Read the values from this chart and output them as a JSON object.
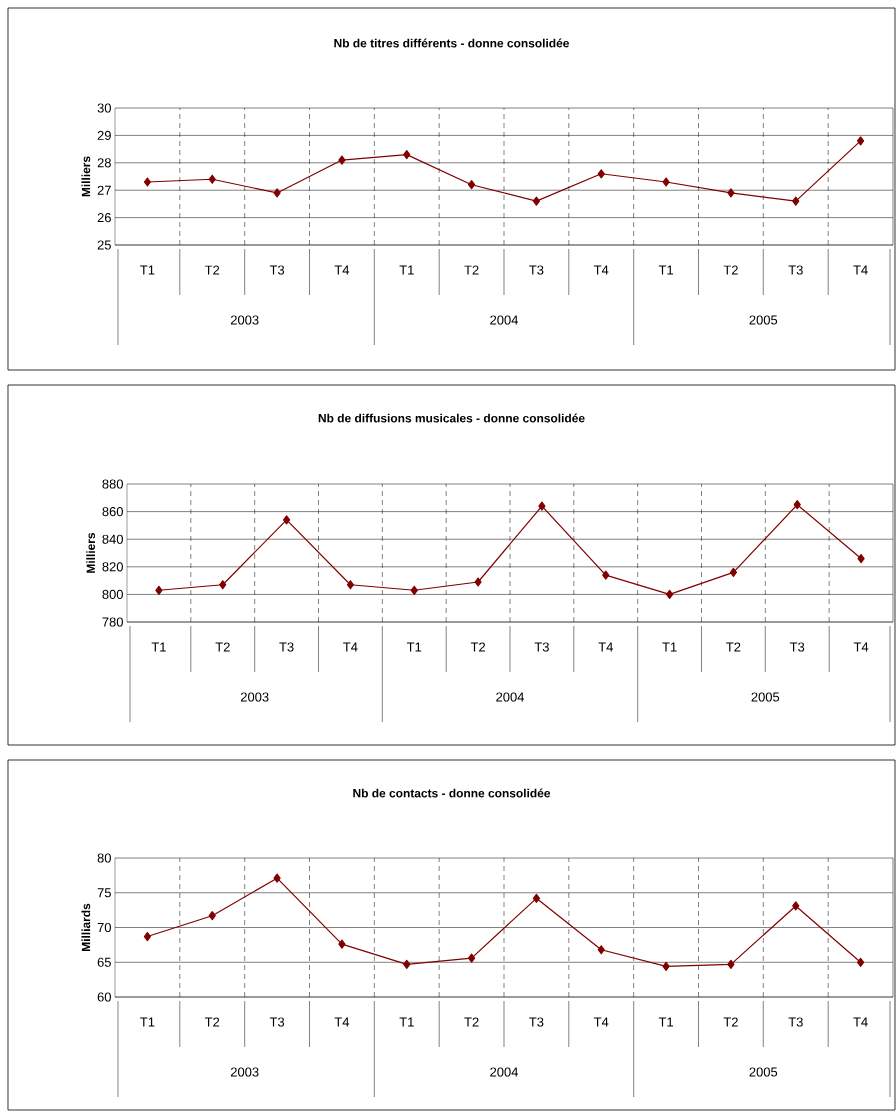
{
  "chart_data": [
    {
      "type": "line",
      "title": "Nb de titres différents - donne consolidée",
      "ylabel": "Milliers",
      "categories": [
        "T1",
        "T2",
        "T3",
        "T4",
        "T1",
        "T2",
        "T3",
        "T4",
        "T1",
        "T2",
        "T3",
        "T4"
      ],
      "annotations": [
        "2003",
        "2004",
        "2005"
      ],
      "values": [
        27.3,
        27.4,
        26.9,
        28.1,
        28.3,
        27.2,
        26.6,
        27.6,
        27.3,
        26.9,
        26.6,
        28.8
      ],
      "color": "#800000",
      "ylim": [
        25,
        30
      ],
      "yticks": [
        25,
        26,
        27,
        28,
        29,
        30
      ],
      "grid": true,
      "marker": "diamond"
    },
    {
      "type": "line",
      "title": "Nb de diffusions musicales - donne consolidée",
      "ylabel": "Milliers",
      "categories": [
        "T1",
        "T2",
        "T3",
        "T4",
        "T1",
        "T2",
        "T3",
        "T4",
        "T1",
        "T2",
        "T3",
        "T4"
      ],
      "annotations": [
        "2003",
        "2004",
        "2005"
      ],
      "values": [
        803,
        807,
        854,
        807,
        803,
        809,
        864,
        814,
        800,
        816,
        865,
        826
      ],
      "color": "#800000",
      "ylim": [
        780,
        880
      ],
      "yticks": [
        780,
        800,
        820,
        840,
        860,
        880
      ],
      "grid": true,
      "marker": "diamond"
    },
    {
      "type": "line",
      "title": "Nb de contacts - donne consolidée",
      "ylabel": "Milliards",
      "categories": [
        "T1",
        "T2",
        "T3",
        "T4",
        "T1",
        "T2",
        "T3",
        "T4",
        "T1",
        "T2",
        "T3",
        "T4"
      ],
      "annotations": [
        "2003",
        "2004",
        "2005"
      ],
      "values": [
        68.7,
        71.7,
        77.1,
        67.6,
        64.7,
        65.6,
        74.2,
        66.8,
        64.4,
        64.7,
        73.1,
        65.0
      ],
      "color": "#800000",
      "ylim": [
        60,
        80
      ],
      "yticks": [
        60,
        65,
        70,
        75,
        80
      ],
      "grid": true,
      "marker": "diamond"
    }
  ]
}
